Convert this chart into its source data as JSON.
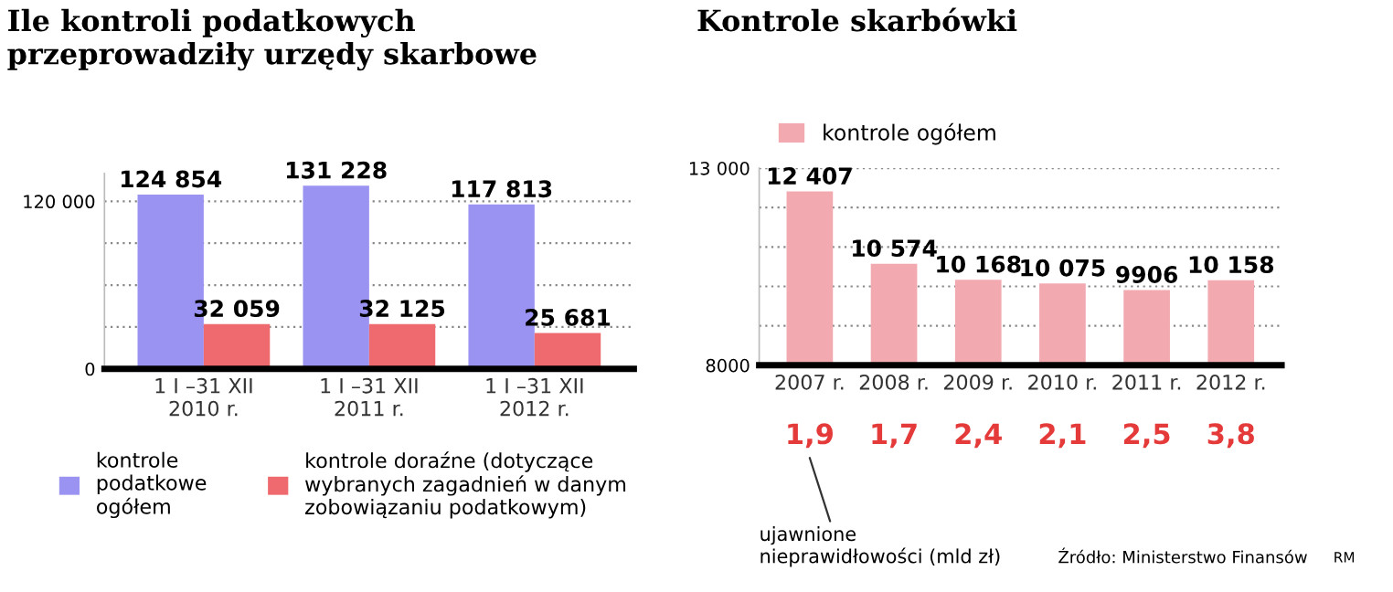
{
  "chart_data": [
    {
      "type": "bar",
      "title": "Ile kontroli podatkowych\nprzeprowadziły urzędy skarbowe",
      "categories": [
        "1 I –31 XII\n2010 r.",
        "1 I –31 XII\n2011 r.",
        "1 I –31 XII\n2012 r."
      ],
      "series": [
        {
          "name": "kontrole\npodatkowe\nogółem",
          "color": "#9b93f2",
          "values": [
            124854,
            131228,
            117813
          ],
          "value_labels": [
            "124 854",
            "131 228",
            "117 813"
          ]
        },
        {
          "name": "kontrole doraźne (dotyczące\nwybranych zagadnień w danym\nzobowiązaniu podatkowym)",
          "color": "#ee6a6e",
          "values": [
            32059,
            32125,
            25681
          ],
          "value_labels": [
            "32 059",
            "32 125",
            "25 681"
          ]
        }
      ],
      "ylim": [
        0,
        140000
      ],
      "yticks": [
        {
          "value": 0,
          "label": "0"
        },
        {
          "value": 30000,
          "label": null
        },
        {
          "value": 60000,
          "label": null
        },
        {
          "value": 90000,
          "label": null
        },
        {
          "value": 120000,
          "label": "120 000"
        }
      ],
      "grid": "y",
      "legend": "bottom"
    },
    {
      "type": "bar",
      "title": "Kontrole skarbówki",
      "categories": [
        "2007 r.",
        "2008 r.",
        "2009 r.",
        "2010 r.",
        "2011 r.",
        "2012 r."
      ],
      "series": [
        {
          "name": "kontrole ogółem",
          "color": "#f2a9b0",
          "values": [
            12407,
            10574,
            10168,
            10075,
            9906,
            10158
          ],
          "value_labels": [
            "12 407",
            "10 574",
            "10 168",
            "10 075",
            "9906",
            "10 158"
          ]
        }
      ],
      "ylim": [
        8000,
        13000
      ],
      "yticks": [
        {
          "value": 8000,
          "label": "8000"
        },
        {
          "value": 9000,
          "label": null
        },
        {
          "value": 10000,
          "label": null
        },
        {
          "value": 11000,
          "label": null
        },
        {
          "value": 12000,
          "label": null
        },
        {
          "value": 13000,
          "label": "13 000"
        }
      ],
      "grid": "y",
      "legend": "top left",
      "annotations": [
        "1,9",
        "1,7",
        "2,4",
        "2,1",
        "2,5",
        "3,8",
        "ujawnione\nnieprawidłowości (mld zł)",
        "Źródło: Ministerstwo Finansów",
        "RM"
      ]
    }
  ]
}
